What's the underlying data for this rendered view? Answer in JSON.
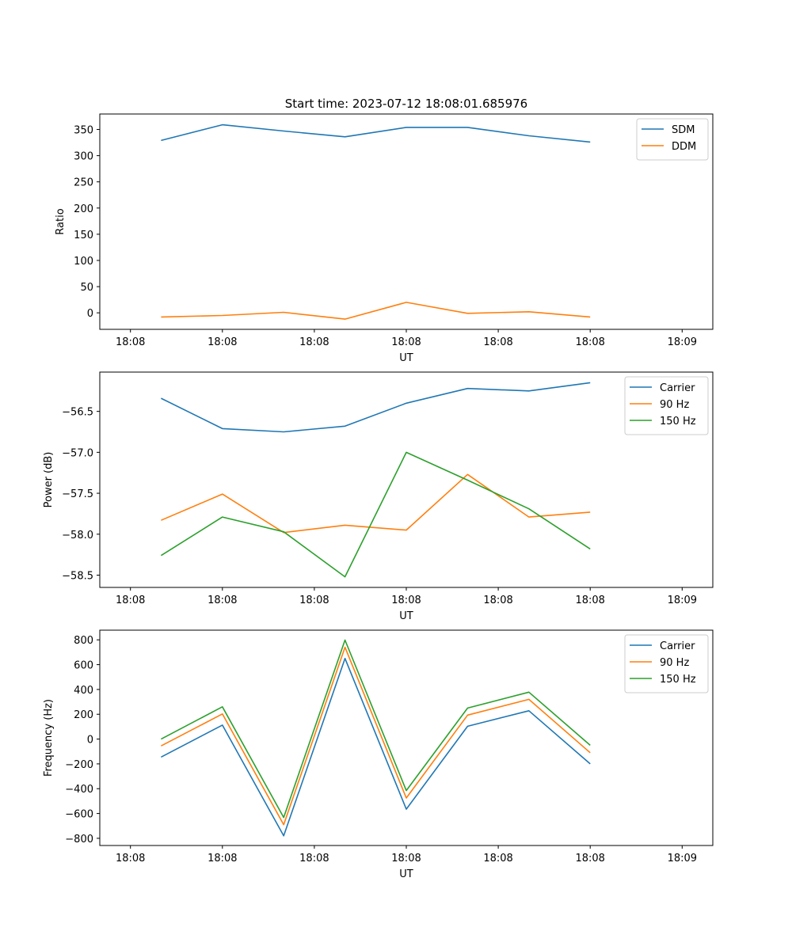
{
  "figure": {
    "title": "Start time: 2023-07-12 18:08:01.685976"
  },
  "chart_data": [
    {
      "type": "line",
      "title": "Start time: 2023-07-12 18:08:01.685976",
      "xlabel": "UT",
      "ylabel": "Ratio",
      "x": [
        1,
        2,
        3,
        4,
        5,
        6,
        7,
        8
      ],
      "xlim": [
        0,
        10
      ],
      "x_ticks": [
        0.5,
        2,
        3.5,
        5,
        6.5,
        8,
        9.5
      ],
      "x_tick_labels": [
        "18:08",
        "18:08",
        "18:08",
        "18:08",
        "18:08",
        "18:08",
        "18:09"
      ],
      "ylim": [
        -31.5,
        379.5
      ],
      "y_ticks": [
        0,
        50,
        100,
        150,
        200,
        250,
        300,
        350
      ],
      "y_tick_labels": [
        "0",
        "50",
        "100",
        "150",
        "200",
        "250",
        "300",
        "350"
      ],
      "legend_position": "top-right",
      "grid": false,
      "series": [
        {
          "name": "SDM",
          "color": "#1f77b4",
          "values": [
            329,
            359,
            347,
            336,
            354,
            354,
            338,
            326
          ]
        },
        {
          "name": "DDM",
          "color": "#ff7f0e",
          "values": [
            -8,
            -5,
            1,
            -12,
            20,
            -1,
            2,
            -8
          ]
        }
      ]
    },
    {
      "type": "line",
      "title": "",
      "xlabel": "UT",
      "ylabel": "Power (dB)",
      "x": [
        1,
        2,
        3,
        4,
        5,
        6,
        7,
        8
      ],
      "xlim": [
        0,
        10
      ],
      "x_ticks": [
        0.5,
        2,
        3.5,
        5,
        6.5,
        8,
        9.5
      ],
      "x_tick_labels": [
        "18:08",
        "18:08",
        "18:08",
        "18:08",
        "18:08",
        "18:08",
        "18:09"
      ],
      "ylim": [
        -58.65,
        -56.02
      ],
      "y_ticks": [
        -56.5,
        -57.0,
        -57.5,
        -58.0,
        -58.5
      ],
      "y_tick_labels": [
        "−56.5",
        "−57.0",
        "−57.5",
        "−58.0",
        "−58.5"
      ],
      "legend_position": "top-right",
      "grid": false,
      "series": [
        {
          "name": "Carrier",
          "color": "#1f77b4",
          "values": [
            -56.34,
            -56.71,
            -56.75,
            -56.68,
            -56.4,
            -56.22,
            -56.25,
            -56.15
          ]
        },
        {
          "name": "90 Hz",
          "color": "#ff7f0e",
          "values": [
            -57.83,
            -57.51,
            -57.98,
            -57.89,
            -57.95,
            -57.27,
            -57.79,
            -57.73
          ]
        },
        {
          "name": "150 Hz",
          "color": "#2ca02c",
          "values": [
            -58.26,
            -57.79,
            -57.97,
            -58.52,
            -57.0,
            -57.34,
            -57.69,
            -58.18
          ]
        }
      ]
    },
    {
      "type": "line",
      "title": "",
      "xlabel": "UT",
      "ylabel": "Frequency (Hz)",
      "x": [
        1,
        2,
        3,
        4,
        5,
        6,
        7,
        8
      ],
      "xlim": [
        0,
        10
      ],
      "x_ticks": [
        0.5,
        2,
        3.5,
        5,
        6.5,
        8,
        9.5
      ],
      "x_tick_labels": [
        "18:08",
        "18:08",
        "18:08",
        "18:08",
        "18:08",
        "18:08",
        "18:09"
      ],
      "ylim": [
        -858,
        878
      ],
      "y_ticks": [
        800,
        600,
        400,
        200,
        0,
        -200,
        -400,
        -600,
        -800
      ],
      "y_tick_labels": [
        "800",
        "600",
        "400",
        "200",
        "0",
        "−200",
        "−400",
        "−600",
        "−800"
      ],
      "legend_position": "top-right",
      "grid": false,
      "series": [
        {
          "name": "Carrier",
          "color": "#1f77b4",
          "values": [
            -145,
            113,
            -780,
            650,
            -565,
            103,
            228,
            -200
          ]
        },
        {
          "name": "90 Hz",
          "color": "#ff7f0e",
          "values": [
            -55,
            203,
            -690,
            740,
            -475,
            193,
            320,
            -110
          ]
        },
        {
          "name": "150 Hz",
          "color": "#2ca02c",
          "values": [
            0,
            260,
            -632,
            798,
            -415,
            250,
            378,
            -50
          ]
        }
      ]
    }
  ]
}
